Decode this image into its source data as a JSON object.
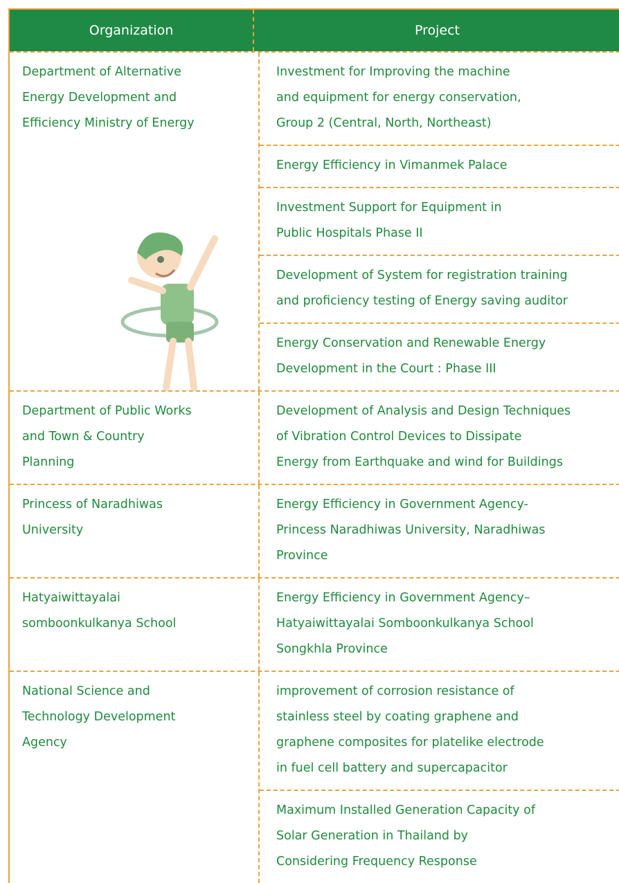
{
  "header": {
    "columns": [
      "Organization",
      "Project"
    ]
  },
  "table": {
    "rows": [
      {
        "organization": [
          "Department of Alternative",
          "Energy Development and",
          "Efficiency Ministry of Energy"
        ],
        "projects": [
          [
            "Investment for Improving the machine",
            "and equipment for energy conservation,",
            "Group 2 (Central, North, Northeast)"
          ],
          [
            "Energy Efficiency in Vimanmek Palace"
          ],
          [
            "Investment Support for Equipment in",
            "Public Hospitals Phase II"
          ],
          [
            "Development of System for registration training",
            "and proficiency testing of Energy saving auditor"
          ],
          [
            "Energy Conservation and Renewable Energy",
            "Development in the Court : Phase III"
          ]
        ]
      },
      {
        "organization": [
          "Department of Public Works",
          "and Town & Country",
          "Planning"
        ],
        "projects": [
          [
            "Development of Analysis and Design Techniques",
            "of Vibration Control Devices to Dissipate",
            "Energy from Earthquake and wind for Buildings"
          ]
        ]
      },
      {
        "organization": [
          "Princess of Naradhiwas",
          "University"
        ],
        "projects": [
          [
            "Energy Efficiency in Government Agency-",
            "Princess Naradhiwas University, Naradhiwas",
            "Province"
          ]
        ]
      },
      {
        "organization": [
          "Hatyaiwittayalai",
          "somboonkulkanya School"
        ],
        "projects": [
          [
            "Energy Efficiency in Government Agency–",
            "Hatyaiwittayalai Somboonkulkanya School",
            "Songkhla Province"
          ]
        ]
      },
      {
        "organization": [
          "National Science and",
          "Technology Development",
          "Agency"
        ],
        "projects": [
          [
            "improvement of corrosion resistance of",
            "stainless steel by coating graphene and",
            "graphene composites for platelike electrode",
            "in fuel cell battery and supercapacitor"
          ],
          [
            "Maximum Installed Generation Capacity of",
            "Solar Generation in Thailand by",
            "Considering Frequency Response"
          ]
        ]
      }
    ]
  }
}
